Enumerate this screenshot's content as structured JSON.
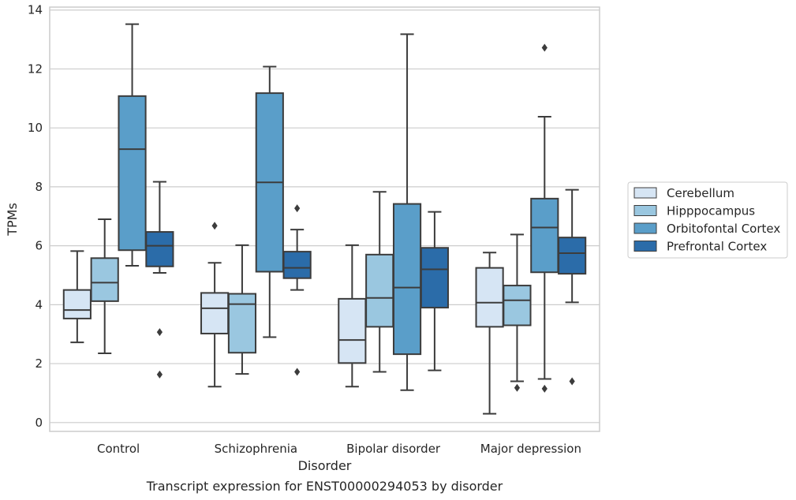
{
  "chart_data": {
    "type": "box",
    "title": "Transcript expression for ENST00000294053 by disorder",
    "xlabel": "Disorder",
    "ylabel": "TPMs",
    "ylim": [
      -0.3,
      14.1
    ],
    "yticks": [
      0,
      2,
      4,
      6,
      8,
      10,
      12,
      14
    ],
    "grid": true,
    "legend_position": "right",
    "categories": [
      "Control",
      "Schizophrenia",
      "Bipolar disorder",
      "Major depression"
    ],
    "series": [
      {
        "name": "Cerebellum",
        "color": "#d6e5f4",
        "boxes": [
          {
            "whisker_low": 2.72,
            "q1": 3.53,
            "median": 3.82,
            "q3": 4.5,
            "whisker_high": 5.82,
            "outliers": []
          },
          {
            "whisker_low": 1.22,
            "q1": 3.02,
            "median": 3.88,
            "q3": 4.4,
            "whisker_high": 5.42,
            "outliers": [
              6.68
            ]
          },
          {
            "whisker_low": 1.22,
            "q1": 2.02,
            "median": 2.8,
            "q3": 4.2,
            "whisker_high": 6.02,
            "outliers": []
          },
          {
            "whisker_low": 0.3,
            "q1": 3.25,
            "median": 4.07,
            "q3": 5.25,
            "whisker_high": 5.77,
            "outliers": []
          }
        ]
      },
      {
        "name": "Hipppocampus",
        "color": "#9ac7e0",
        "boxes": [
          {
            "whisker_low": 2.35,
            "q1": 4.12,
            "median": 4.75,
            "q3": 5.58,
            "whisker_high": 6.9,
            "outliers": []
          },
          {
            "whisker_low": 1.65,
            "q1": 2.37,
            "median": 4.02,
            "q3": 4.37,
            "whisker_high": 6.02,
            "outliers": []
          },
          {
            "whisker_low": 1.72,
            "q1": 3.25,
            "median": 4.23,
            "q3": 5.7,
            "whisker_high": 7.83,
            "outliers": []
          },
          {
            "whisker_low": 1.4,
            "q1": 3.3,
            "median": 4.15,
            "q3": 4.65,
            "whisker_high": 6.38,
            "outliers": [
              1.18
            ]
          }
        ]
      },
      {
        "name": "Orbitofontal Cortex",
        "color": "#5a9ec9",
        "boxes": [
          {
            "whisker_low": 5.32,
            "q1": 5.85,
            "median": 9.28,
            "q3": 11.08,
            "whisker_high": 13.52,
            "outliers": []
          },
          {
            "whisker_low": 2.9,
            "q1": 5.12,
            "median": 8.15,
            "q3": 11.18,
            "whisker_high": 12.08,
            "outliers": []
          },
          {
            "whisker_low": 1.1,
            "q1": 2.32,
            "median": 4.58,
            "q3": 7.42,
            "whisker_high": 13.18,
            "outliers": []
          },
          {
            "whisker_low": 1.48,
            "q1": 5.1,
            "median": 6.62,
            "q3": 7.6,
            "whisker_high": 10.38,
            "outliers": [
              1.15,
              12.72
            ]
          }
        ]
      },
      {
        "name": "Prefrontal Cortex",
        "color": "#2b6ca9",
        "boxes": [
          {
            "whisker_low": 5.08,
            "q1": 5.3,
            "median": 6.0,
            "q3": 6.47,
            "whisker_high": 8.17,
            "outliers": [
              3.07,
              1.63
            ]
          },
          {
            "whisker_low": 4.5,
            "q1": 4.9,
            "median": 5.25,
            "q3": 5.8,
            "whisker_high": 6.55,
            "outliers": [
              7.27,
              1.72
            ]
          },
          {
            "whisker_low": 1.77,
            "q1": 3.9,
            "median": 5.2,
            "q3": 5.93,
            "whisker_high": 7.15,
            "outliers": []
          },
          {
            "whisker_low": 4.08,
            "q1": 5.05,
            "median": 5.75,
            "q3": 6.28,
            "whisker_high": 7.9,
            "outliers": [
              1.4
            ]
          }
        ]
      }
    ]
  }
}
